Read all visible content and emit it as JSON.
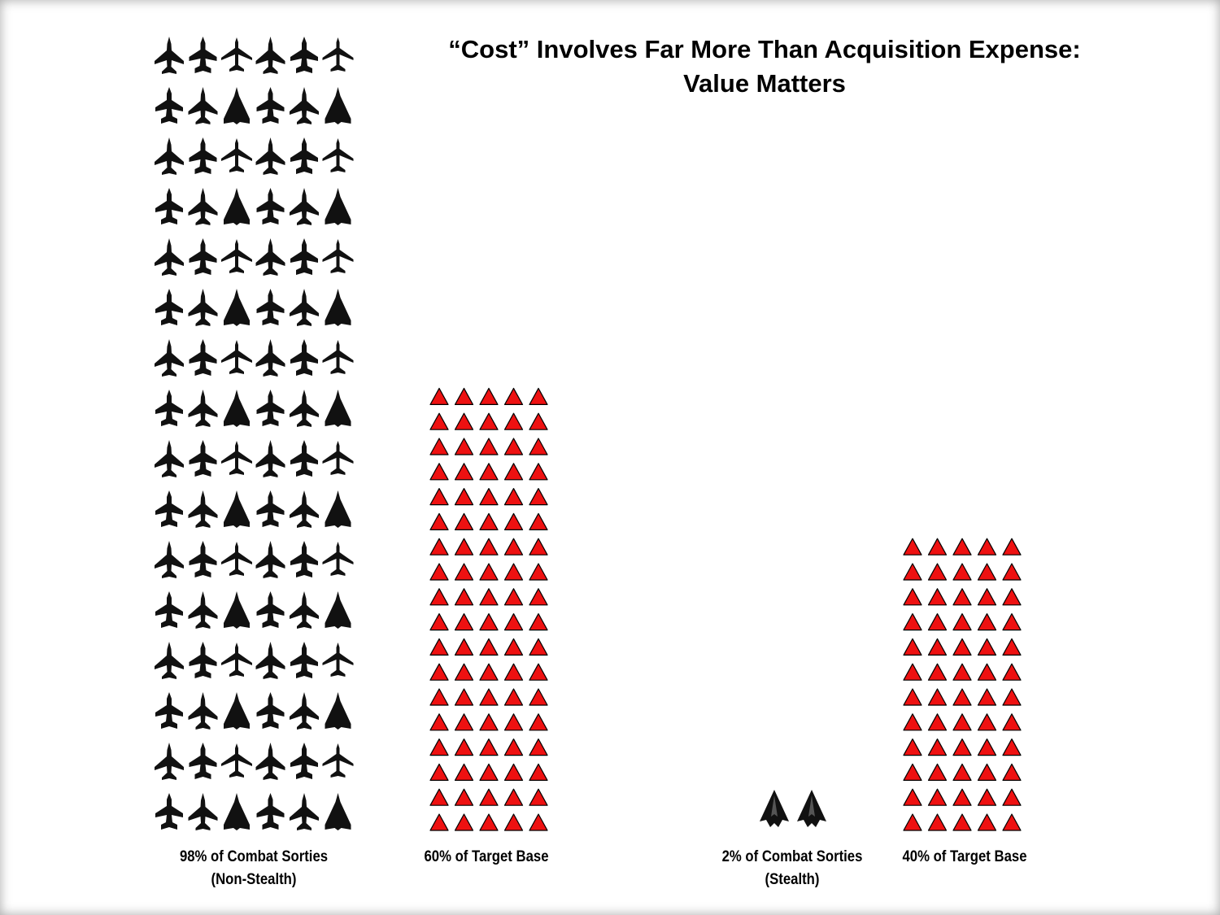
{
  "title": {
    "line1": "“Cost” Involves Far More Than Acquisition Expense:",
    "line2": "Value Matters"
  },
  "chart_data": {
    "type": "bar",
    "style": "pictogram",
    "categories": [
      {
        "line1": "98% of Combat Sorties",
        "line2": "(Non-Stealth)"
      },
      {
        "line1": "60% of Target Base",
        "line2": ""
      },
      {
        "line1": "2% of Combat Sorties",
        "line2": "(Stealth)"
      },
      {
        "line1": "40% of Target Base",
        "line2": ""
      }
    ],
    "values": [
      98,
      60,
      2,
      40
    ],
    "unit": "%",
    "icons": [
      "aircraft-icon",
      "target-triangle-icon",
      "stealth-aircraft-icon",
      "target-triangle-icon"
    ],
    "colors": {
      "aircraft": "#111111",
      "target": "#ee1111",
      "target_outline": "#000000"
    }
  }
}
